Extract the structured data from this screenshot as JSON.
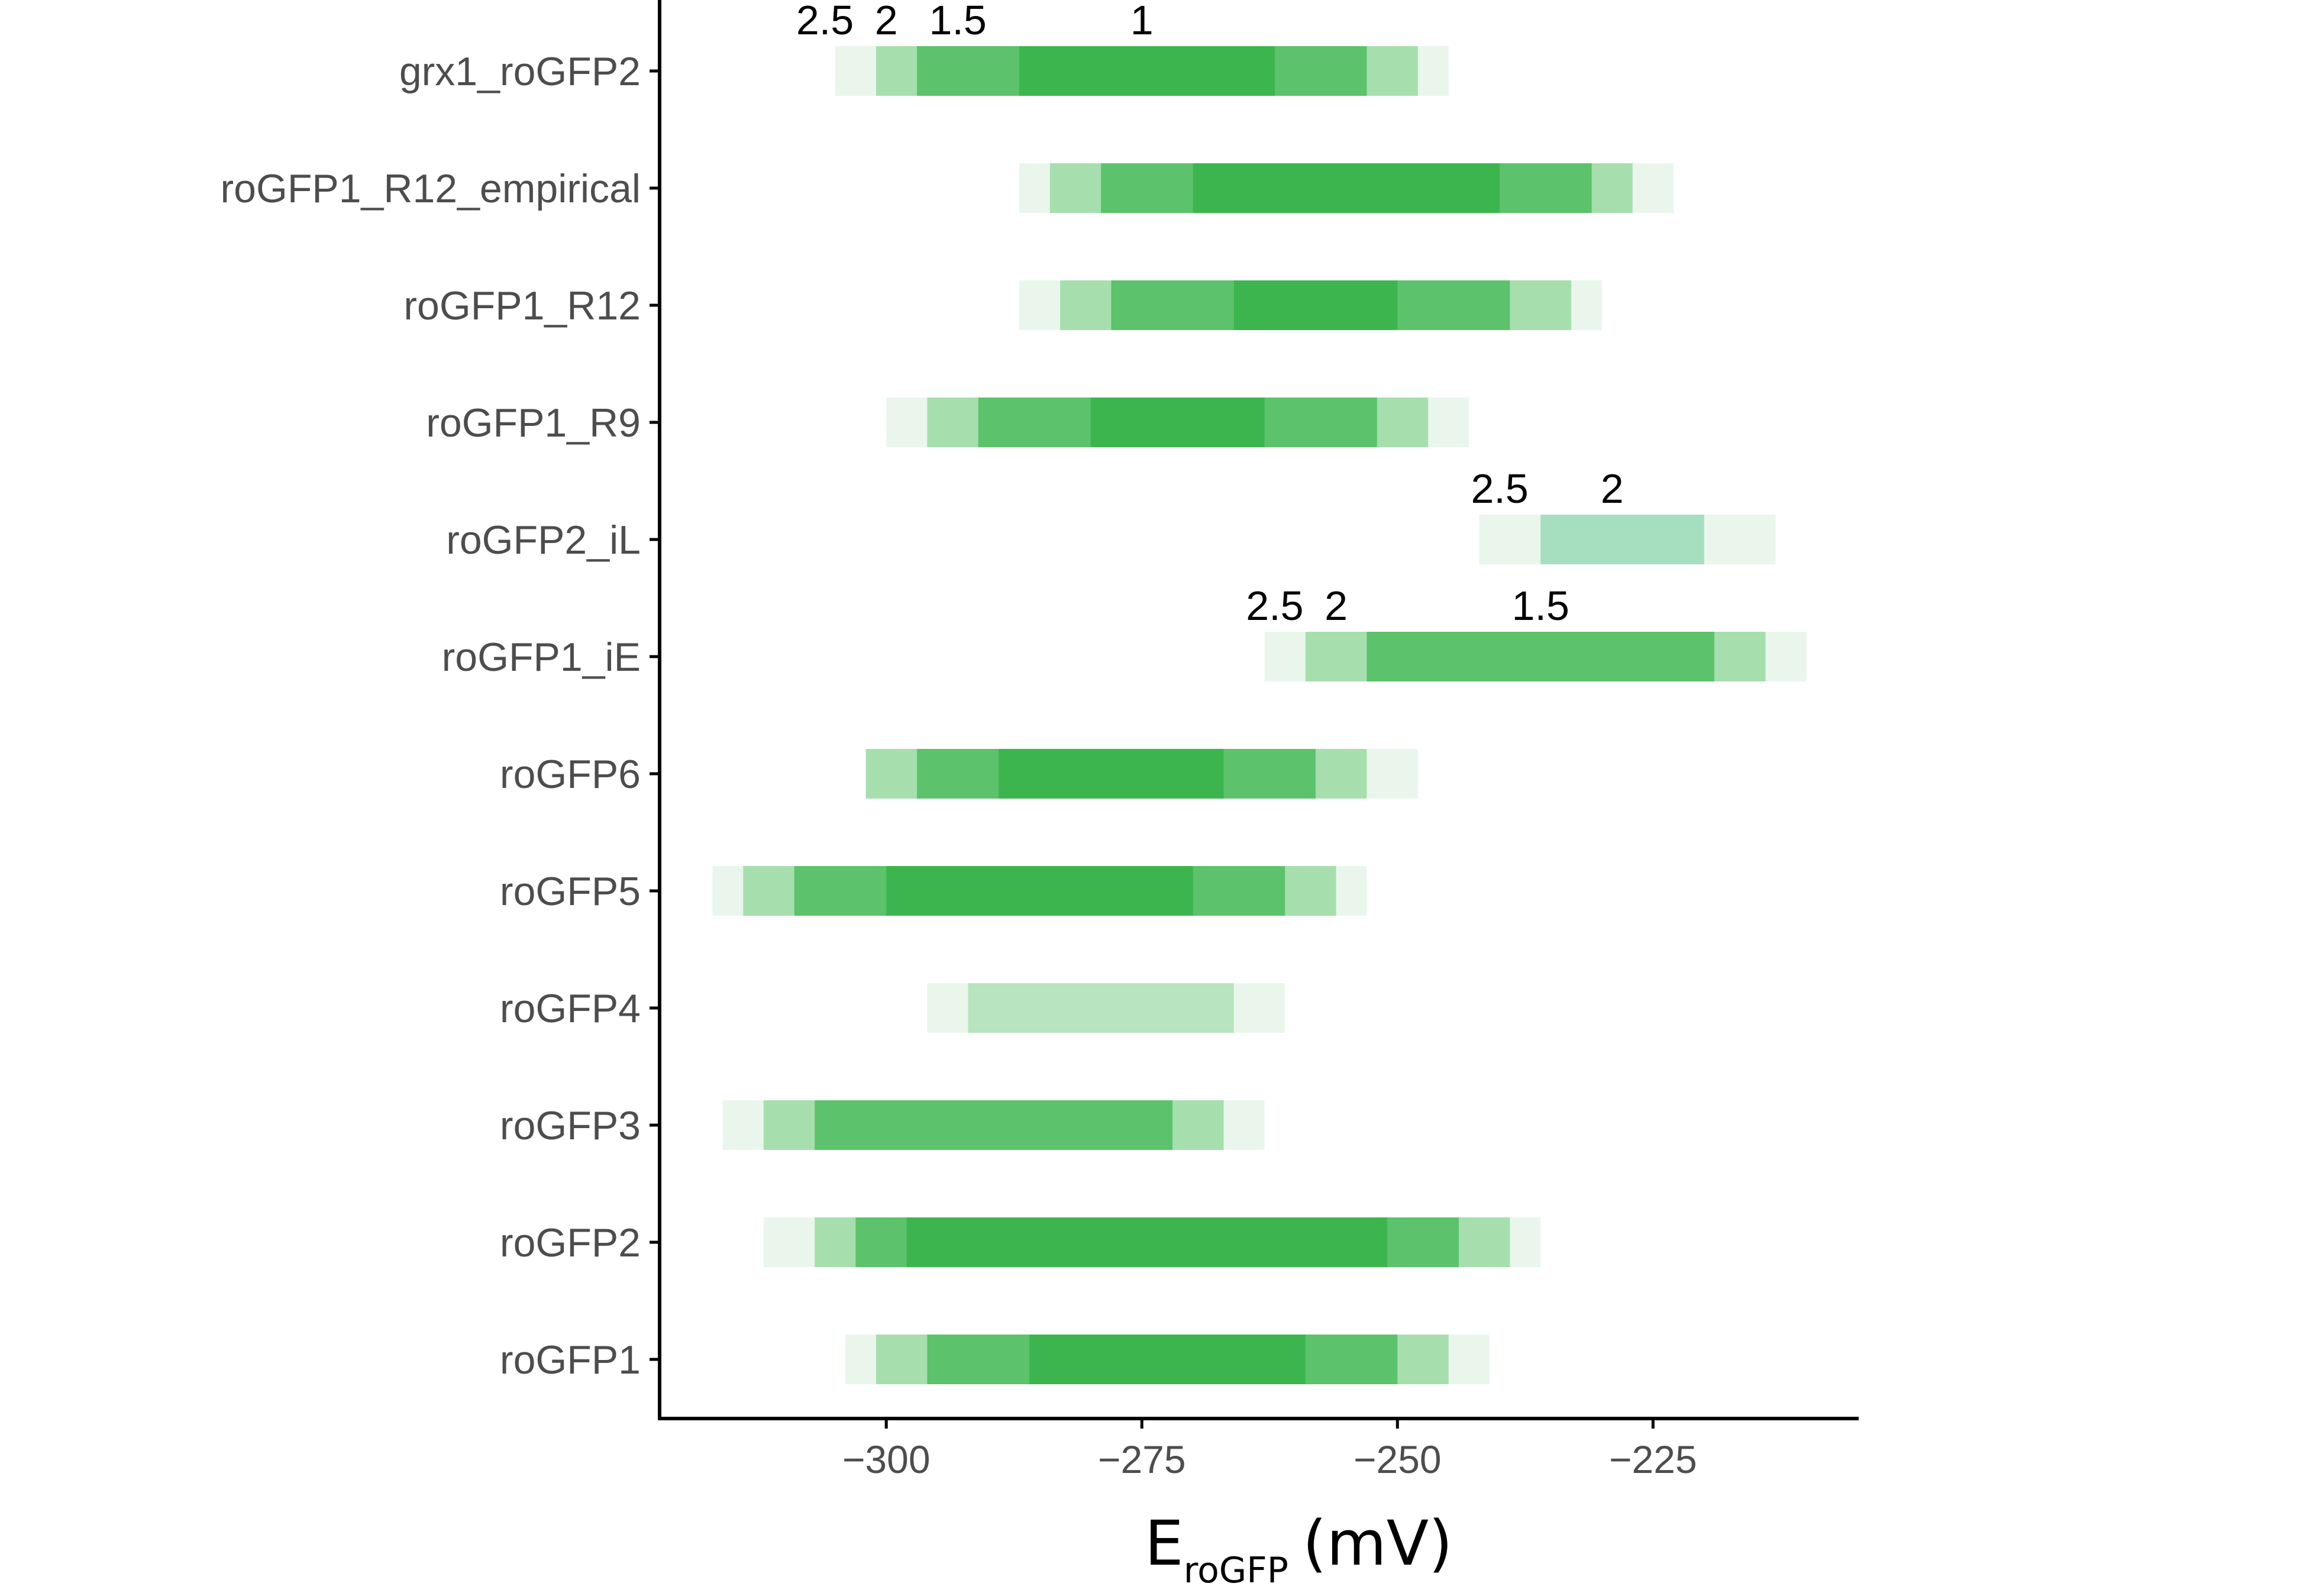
{
  "chart_data": {
    "type": "bar",
    "subtype": "horizontal-range-bands",
    "xlabel": {
      "main": "E",
      "subscript": "roGFP",
      "unit": "(mV)"
    },
    "xlim": [
      -322,
      -205
    ],
    "xticks": [
      {
        "value": -300,
        "label": "−300"
      },
      {
        "value": -275,
        "label": "−275"
      },
      {
        "value": -250,
        "label": "−250"
      },
      {
        "value": -225,
        "label": "−225"
      }
    ],
    "colors": {
      "band_2_5": "#eaf6ec",
      "band_2": "#a6dfad",
      "band_1_5": "#5cc26b",
      "band_1": "#3cb54e",
      "roGFP2_iL_band_2": "#a6dec0",
      "roGFP4_band_2": "#b8e4bf",
      "axis": "#000000"
    },
    "categories": [
      "grx1_roGFP2",
      "roGFP1_R12_empirical",
      "roGFP1_R12",
      "roGFP1_R9",
      "roGFP2_iL",
      "roGFP1_iE",
      "roGFP6",
      "roGFP5",
      "roGFP4",
      "roGFP3",
      "roGFP2",
      "roGFP1"
    ],
    "series": [
      {
        "category": "grx1_roGFP2",
        "bands": [
          {
            "level": "2.5",
            "range": [
              -305,
              -245
            ]
          },
          {
            "level": "2",
            "range": [
              -301,
              -248
            ]
          },
          {
            "level": "1.5",
            "range": [
              -297,
              -253
            ]
          },
          {
            "level": "1",
            "range": [
              -287,
              -262
            ]
          }
        ]
      },
      {
        "category": "roGFP1_R12_empirical",
        "bands": [
          {
            "level": "2.5",
            "range": [
              -287,
              -223
            ]
          },
          {
            "level": "2",
            "range": [
              -284,
              -227
            ]
          },
          {
            "level": "1.5",
            "range": [
              -279,
              -231
            ]
          },
          {
            "level": "1",
            "range": [
              -270,
              -240
            ]
          }
        ]
      },
      {
        "category": "roGFP1_R12",
        "bands": [
          {
            "level": "2.5",
            "range": [
              -287,
              -230
            ]
          },
          {
            "level": "2",
            "range": [
              -283,
              -233
            ]
          },
          {
            "level": "1.5",
            "range": [
              -278,
              -239
            ]
          },
          {
            "level": "1",
            "range": [
              -266,
              -250
            ]
          }
        ]
      },
      {
        "category": "roGFP1_R9",
        "bands": [
          {
            "level": "2.5",
            "range": [
              -300,
              -243
            ]
          },
          {
            "level": "2",
            "range": [
              -296,
              -247
            ]
          },
          {
            "level": "1.5",
            "range": [
              -291,
              -252
            ]
          },
          {
            "level": "1",
            "range": [
              -280,
              -263
            ]
          }
        ]
      },
      {
        "category": "roGFP2_iL",
        "bands": [
          {
            "level": "2.5",
            "range": [
              -242,
              -213
            ]
          },
          {
            "level": "2",
            "range": [
              -236,
              -220
            ]
          }
        ]
      },
      {
        "category": "roGFP1_iE",
        "bands": [
          {
            "level": "2.5",
            "range": [
              -263,
              -210
            ]
          },
          {
            "level": "2",
            "range": [
              -259,
              -214
            ]
          },
          {
            "level": "1.5",
            "range": [
              -253,
              -219
            ]
          }
        ]
      },
      {
        "category": "roGFP6",
        "bands": [
          {
            "level": "2.5",
            "range": [
              -302,
              -248
            ]
          },
          {
            "level": "2",
            "range": [
              -302,
              -253
            ]
          },
          {
            "level": "1.5",
            "range": [
              -297,
              -258
            ]
          },
          {
            "level": "1",
            "range": [
              -289,
              -267
            ]
          }
        ]
      },
      {
        "category": "roGFP5",
        "bands": [
          {
            "level": "2.5",
            "range": [
              -317,
              -253
            ]
          },
          {
            "level": "2",
            "range": [
              -314,
              -256
            ]
          },
          {
            "level": "1.5",
            "range": [
              -309,
              -261
            ]
          },
          {
            "level": "1",
            "range": [
              -300,
              -270
            ]
          }
        ]
      },
      {
        "category": "roGFP4",
        "bands": [
          {
            "level": "2.5",
            "range": [
              -296,
              -261
            ]
          },
          {
            "level": "2",
            "range": [
              -292,
              -266
            ]
          }
        ]
      },
      {
        "category": "roGFP3",
        "bands": [
          {
            "level": "2.5",
            "range": [
              -316,
              -263
            ]
          },
          {
            "level": "2",
            "range": [
              -312,
              -267
            ]
          },
          {
            "level": "1.5",
            "range": [
              -307,
              -272
            ]
          }
        ]
      },
      {
        "category": "roGFP2",
        "bands": [
          {
            "level": "2.5",
            "range": [
              -312,
              -236
            ]
          },
          {
            "level": "2",
            "range": [
              -307,
              -239
            ]
          },
          {
            "level": "1.5",
            "range": [
              -303,
              -244
            ]
          },
          {
            "level": "1",
            "range": [
              -298,
              -251
            ]
          }
        ]
      },
      {
        "category": "roGFP1",
        "bands": [
          {
            "level": "2.5",
            "range": [
              -304,
              -241
            ]
          },
          {
            "level": "2",
            "range": [
              -301,
              -245
            ]
          },
          {
            "level": "1.5",
            "range": [
              -296,
              -250
            ]
          },
          {
            "level": "1",
            "range": [
              -286,
              -259
            ]
          }
        ]
      }
    ],
    "annotations": [
      {
        "category": "grx1_roGFP2",
        "labels": [
          {
            "text": "2.5",
            "x": -306
          },
          {
            "text": "2",
            "x": -300
          },
          {
            "text": "1.5",
            "x": -293
          },
          {
            "text": "1",
            "x": -275
          }
        ]
      },
      {
        "category": "roGFP2_iL",
        "labels": [
          {
            "text": "2.5",
            "x": -240
          },
          {
            "text": "2",
            "x": -229
          }
        ]
      },
      {
        "category": "roGFP1_iE",
        "labels": [
          {
            "text": "2.5",
            "x": -262
          },
          {
            "text": "2",
            "x": -256
          },
          {
            "text": "1.5",
            "x": -236
          }
        ]
      }
    ]
  }
}
